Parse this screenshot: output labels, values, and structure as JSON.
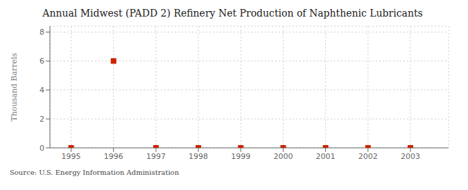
{
  "chart_data": {
    "type": "scatter",
    "title": "Annual Midwest (PADD 2) Refinery Net Production of Naphthenic Lubricants",
    "ylabel": "Thousand Barrels",
    "source": "Source: U.S. Energy Information Administration",
    "x": [
      1995,
      1996,
      1997,
      1998,
      1999,
      2000,
      2001,
      2002,
      2003
    ],
    "values": [
      0,
      6,
      0,
      0,
      0,
      0,
      0,
      0,
      0
    ],
    "xlim": [
      1994.5,
      2003.9
    ],
    "ylim": [
      0,
      8.4
    ],
    "xticks": [
      1995,
      1996,
      1997,
      1998,
      1999,
      2000,
      2001,
      2002,
      2003
    ],
    "yticks": [
      0,
      2,
      4,
      6,
      8
    ],
    "grid": true,
    "color": "#cc2200",
    "marker": "square"
  }
}
